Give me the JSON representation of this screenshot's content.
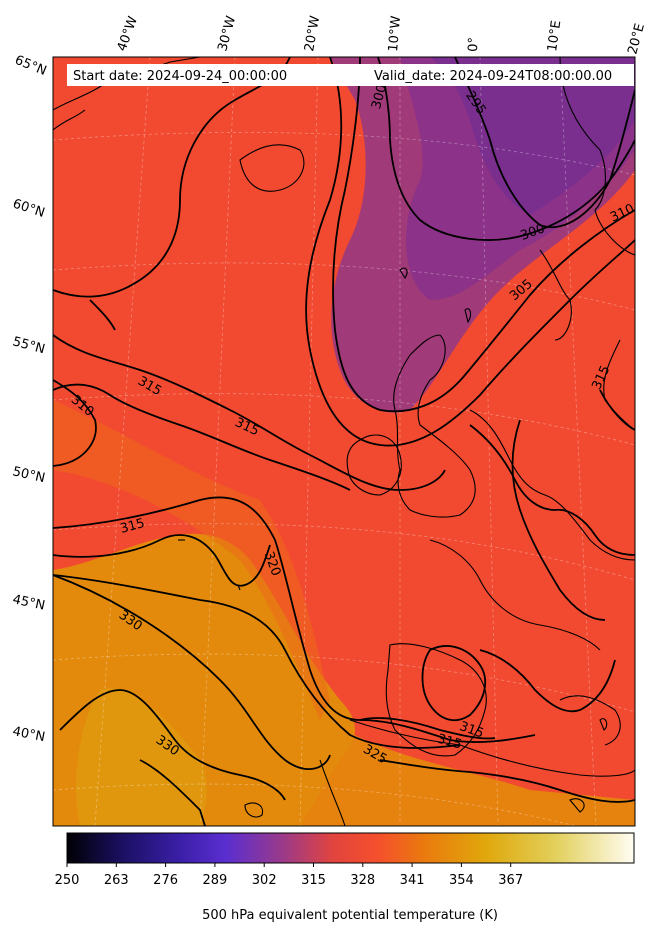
{
  "header": {
    "start_date": "Start date: 2024-09-24_00:00:00",
    "valid_date": "Valid_date: 2024-09-24T08:00:00.00"
  },
  "lon_labels": [
    "40°W",
    "30°W",
    "20°W",
    "10°W",
    "0°",
    "10°E",
    "20°E"
  ],
  "lat_labels": [
    "65°N",
    "60°N",
    "55°N",
    "50°N",
    "45°N",
    "40°N"
  ],
  "contour_labels": [
    "300",
    "295",
    "300",
    "310",
    "305",
    "315",
    "315",
    "310",
    "315",
    "320",
    "330",
    "330",
    "325",
    "315",
    "315",
    "315"
  ],
  "colorbar": {
    "ticks": [
      "250",
      "263",
      "276",
      "289",
      "302",
      "315",
      "328",
      "341",
      "354",
      "367"
    ],
    "label": "500 hPa equivalent potential temperature (K)",
    "colormap": [
      "#000004",
      "#1b1064",
      "#4a28c4",
      "#8a3a9a",
      "#c04670",
      "#f0443a",
      "#f5641e",
      "#e88a0c",
      "#e0ae14",
      "#e4d468",
      "#fffbe8"
    ]
  },
  "colors": {
    "cold_purple": "#7a2f8f",
    "mid_red": "#f24a30",
    "warm_orange": "#e27e0c",
    "contour": "#000000"
  }
}
